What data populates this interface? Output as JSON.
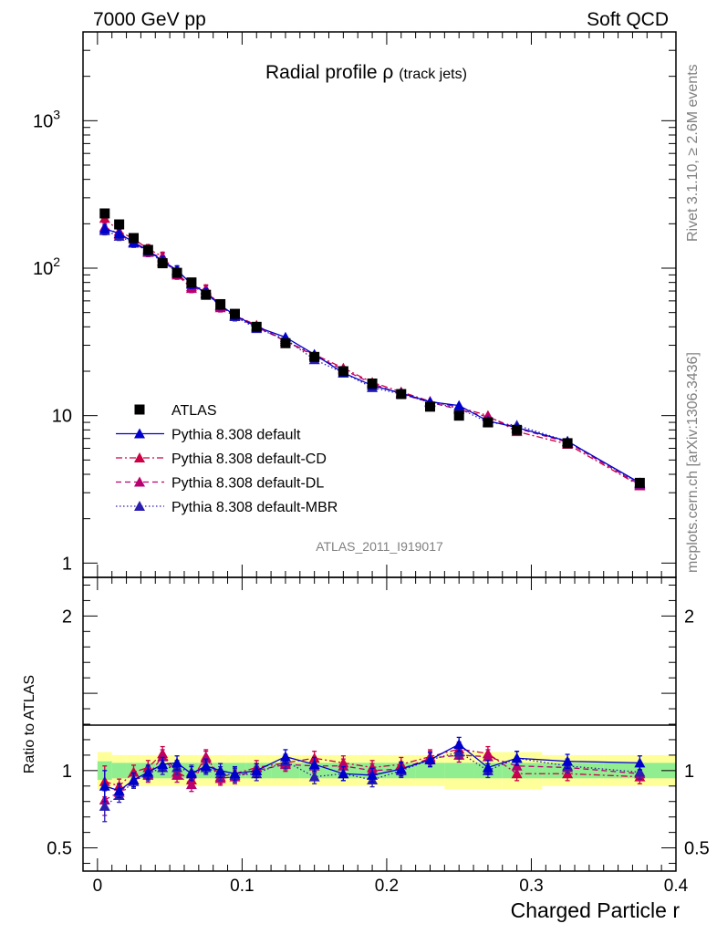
{
  "header": {
    "left_label": "7000 GeV pp",
    "right_label": "Soft QCD"
  },
  "side_text": {
    "rivet": "Rivet 3.1.10, ≥ 2.6M events",
    "mcplots": "mcplots.cern.ch [arXiv:1306.3436]"
  },
  "analysis_id": "ATLAS_2011_I919017",
  "colors": {
    "data": "#000000",
    "default": "#0000cc",
    "cd": "#cc0044",
    "dl": "#b80070",
    "mbr": "#2a1eb0",
    "band_inner": "#90ee90",
    "band_outer": "#ffff99"
  },
  "chart_data": [
    {
      "type": "line",
      "title": "Radial profile",
      "title_symbol": "ρ",
      "title_suffix": "(track jets)",
      "xlabel": "",
      "ylabel": "",
      "yscale": "log",
      "xlim": [
        -0.01,
        0.4
      ],
      "ylim": [
        0.8,
        4000
      ],
      "y_ticks": [
        {
          "value": 1,
          "label": "1"
        },
        {
          "value": 10,
          "label": "10"
        },
        {
          "value": 100,
          "label": "10",
          "exp": "2"
        },
        {
          "value": 1000,
          "label": "10",
          "exp": "3"
        }
      ],
      "legend_position": "middle-left",
      "x": [
        0.005,
        0.015,
        0.025,
        0.035,
        0.045,
        0.055,
        0.065,
        0.075,
        0.085,
        0.095,
        0.11,
        0.13,
        0.15,
        0.17,
        0.19,
        0.21,
        0.23,
        0.25,
        0.27,
        0.29,
        0.325,
        0.375
      ],
      "series": [
        {
          "name": "ATLAS",
          "key": "data",
          "marker": "square",
          "line": "none",
          "values": [
            235,
            198,
            160,
            133,
            108,
            93,
            80,
            66,
            57,
            49,
            40,
            31,
            25,
            20,
            16.5,
            14,
            11.5,
            10,
            9,
            8,
            6.5,
            3.5
          ]
        },
        {
          "name": "Pythia 8.308 default",
          "key": "default",
          "marker": "triangle",
          "line": "solid",
          "values": [
            185,
            172,
            150,
            132,
            112,
            97,
            78,
            68,
            56,
            48,
            40,
            34,
            26,
            19.5,
            16,
            14.2,
            12.4,
            11.7,
            9.2,
            8.3,
            6.7,
            3.5
          ]
        },
        {
          "name": "Pythia 8.308 default-CD",
          "key": "cd",
          "marker": "triangle",
          "line": "dashdot",
          "values": [
            218,
            178,
            158,
            135,
            120,
            92,
            75,
            72,
            55,
            48,
            41,
            32,
            26,
            21,
            16.8,
            14.5,
            12.5,
            11.4,
            10,
            7.8,
            6.4,
            3.35
          ]
        },
        {
          "name": "Pythia 8.308 default-DL",
          "key": "dl",
          "marker": "triangle",
          "line": "dashed",
          "values": [
            190,
            170,
            150,
            128,
            118,
            90,
            73,
            71,
            54,
            47,
            40,
            32,
            25.5,
            20.5,
            16.5,
            14,
            12.3,
            11,
            9.8,
            8.2,
            6.6,
            3.4
          ]
        },
        {
          "name": "Pythia 8.308 default-MBR",
          "key": "mbr",
          "marker": "triangle",
          "line": "dotted",
          "values": [
            180,
            165,
            148,
            130,
            110,
            95,
            79,
            67,
            56,
            47,
            39,
            33,
            24,
            19.5,
            15.5,
            14,
            12.3,
            11.2,
            9,
            8.6,
            6.7,
            3.45
          ]
        }
      ]
    },
    {
      "type": "line",
      "xlabel": "Charged Particle r",
      "ylabel": "Ratio to ATLAS",
      "xlim": [
        -0.01,
        0.4
      ],
      "ylim": [
        0.35,
        2.25
      ],
      "x_ticks": [
        {
          "value": 0,
          "label": "0"
        },
        {
          "value": 0.1,
          "label": "0.1"
        },
        {
          "value": 0.2,
          "label": "0.2"
        },
        {
          "value": 0.3,
          "label": "0.3"
        },
        {
          "value": 0.4,
          "label": "0.4"
        }
      ],
      "y_ticks": [
        {
          "value": 0.5,
          "label": "0.5"
        },
        {
          "value": 1,
          "label": "1"
        },
        {
          "value": 2,
          "label": "2"
        }
      ],
      "band_inner": [
        0.06,
        0.05,
        0.05,
        0.05,
        0.05,
        0.05,
        0.05,
        0.05,
        0.05,
        0.05,
        0.05,
        0.05,
        0.05,
        0.05,
        0.05,
        0.05,
        0.05,
        0.05,
        0.05,
        0.05,
        0.05,
        0.05
      ],
      "band_outer": [
        0.12,
        0.1,
        0.1,
        0.1,
        0.1,
        0.1,
        0.1,
        0.1,
        0.1,
        0.1,
        0.1,
        0.1,
        0.1,
        0.1,
        0.1,
        0.1,
        0.1,
        0.12,
        0.12,
        0.12,
        0.1,
        0.1
      ],
      "series": [
        {
          "key": "default",
          "values": [
            0.9,
            0.87,
            0.94,
            0.99,
            1.04,
            1.05,
            0.98,
            1.03,
            1.0,
            0.98,
            1.0,
            1.09,
            1.04,
            0.98,
            0.97,
            1.01,
            1.07,
            1.17,
            1.02,
            1.08,
            1.06,
            1.05
          ]
        },
        {
          "key": "cd",
          "values": [
            0.93,
            0.9,
            0.99,
            1.02,
            1.11,
            0.99,
            0.94,
            1.09,
            0.96,
            0.98,
            1.02,
            1.05,
            1.08,
            1.05,
            1.02,
            1.04,
            1.09,
            1.14,
            1.11,
            0.98,
            0.98,
            0.96
          ]
        },
        {
          "key": "dl",
          "values": [
            0.81,
            0.86,
            0.94,
            0.97,
            1.09,
            0.97,
            0.91,
            1.08,
            0.95,
            0.96,
            1.0,
            1.04,
            1.03,
            1.03,
            1.0,
            1.01,
            1.08,
            1.1,
            1.09,
            1.03,
            1.02,
            0.98
          ]
        },
        {
          "key": "mbr",
          "values": [
            0.77,
            0.84,
            0.93,
            0.98,
            1.02,
            1.02,
            0.99,
            1.02,
            0.98,
            0.97,
            0.98,
            1.06,
            0.96,
            0.98,
            0.94,
            1.0,
            1.07,
            1.12,
            1.0,
            1.08,
            1.03,
            0.99
          ]
        }
      ]
    }
  ]
}
